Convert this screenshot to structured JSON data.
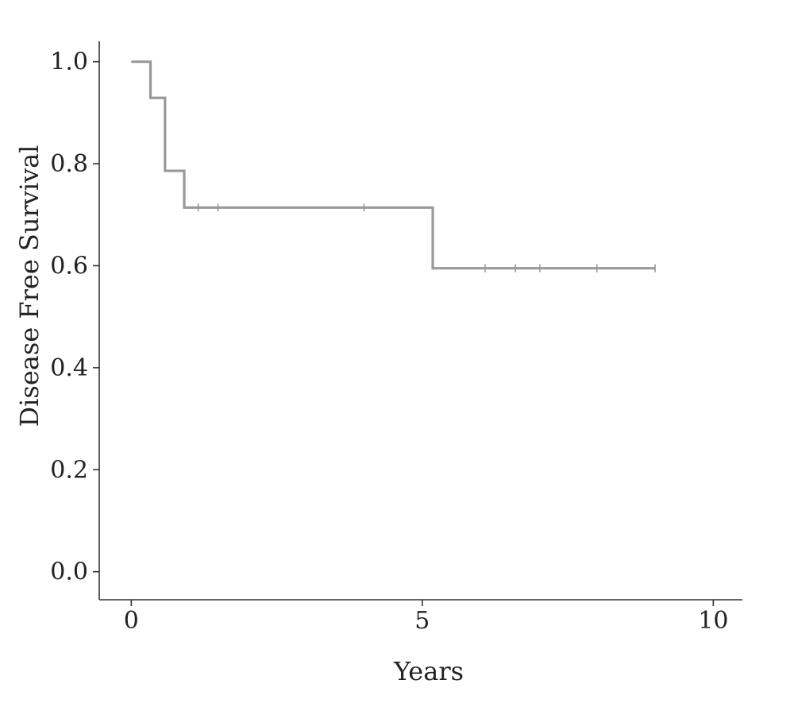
{
  "chart_data": {
    "type": "line",
    "subtype": "kaplan-meier step",
    "xlabel": "Years",
    "ylabel": "Disease Free Survival",
    "xlim": [
      -0.55,
      10.5
    ],
    "ylim": [
      -0.055,
      1.04
    ],
    "xticks": [
      0,
      5,
      10
    ],
    "xtick_labels": [
      "0",
      "5",
      "10"
    ],
    "yticks": [
      0.0,
      0.2,
      0.4,
      0.6,
      0.8,
      1.0
    ],
    "ytick_labels": [
      "0.0",
      "0.2",
      "0.4",
      "0.6",
      "0.8",
      "1.0"
    ],
    "grid": false,
    "legend": "none",
    "color": "#999999",
    "series": [
      {
        "steps": [
          {
            "x": 0.0,
            "y": 1.0
          },
          {
            "x": 0.33,
            "y": 0.929
          },
          {
            "x": 0.58,
            "y": 0.786
          },
          {
            "x": 0.91,
            "y": 0.714
          },
          {
            "x": 5.18,
            "y": 0.595
          }
        ],
        "end_x": 9.0,
        "censored": [
          {
            "x": 1.15,
            "y": 0.714
          },
          {
            "x": 1.49,
            "y": 0.714
          },
          {
            "x": 4.0,
            "y": 0.714
          },
          {
            "x": 6.08,
            "y": 0.595
          },
          {
            "x": 6.6,
            "y": 0.595
          },
          {
            "x": 7.02,
            "y": 0.595
          },
          {
            "x": 8.0,
            "y": 0.595
          },
          {
            "x": 9.0,
            "y": 0.595
          }
        ]
      }
    ]
  }
}
